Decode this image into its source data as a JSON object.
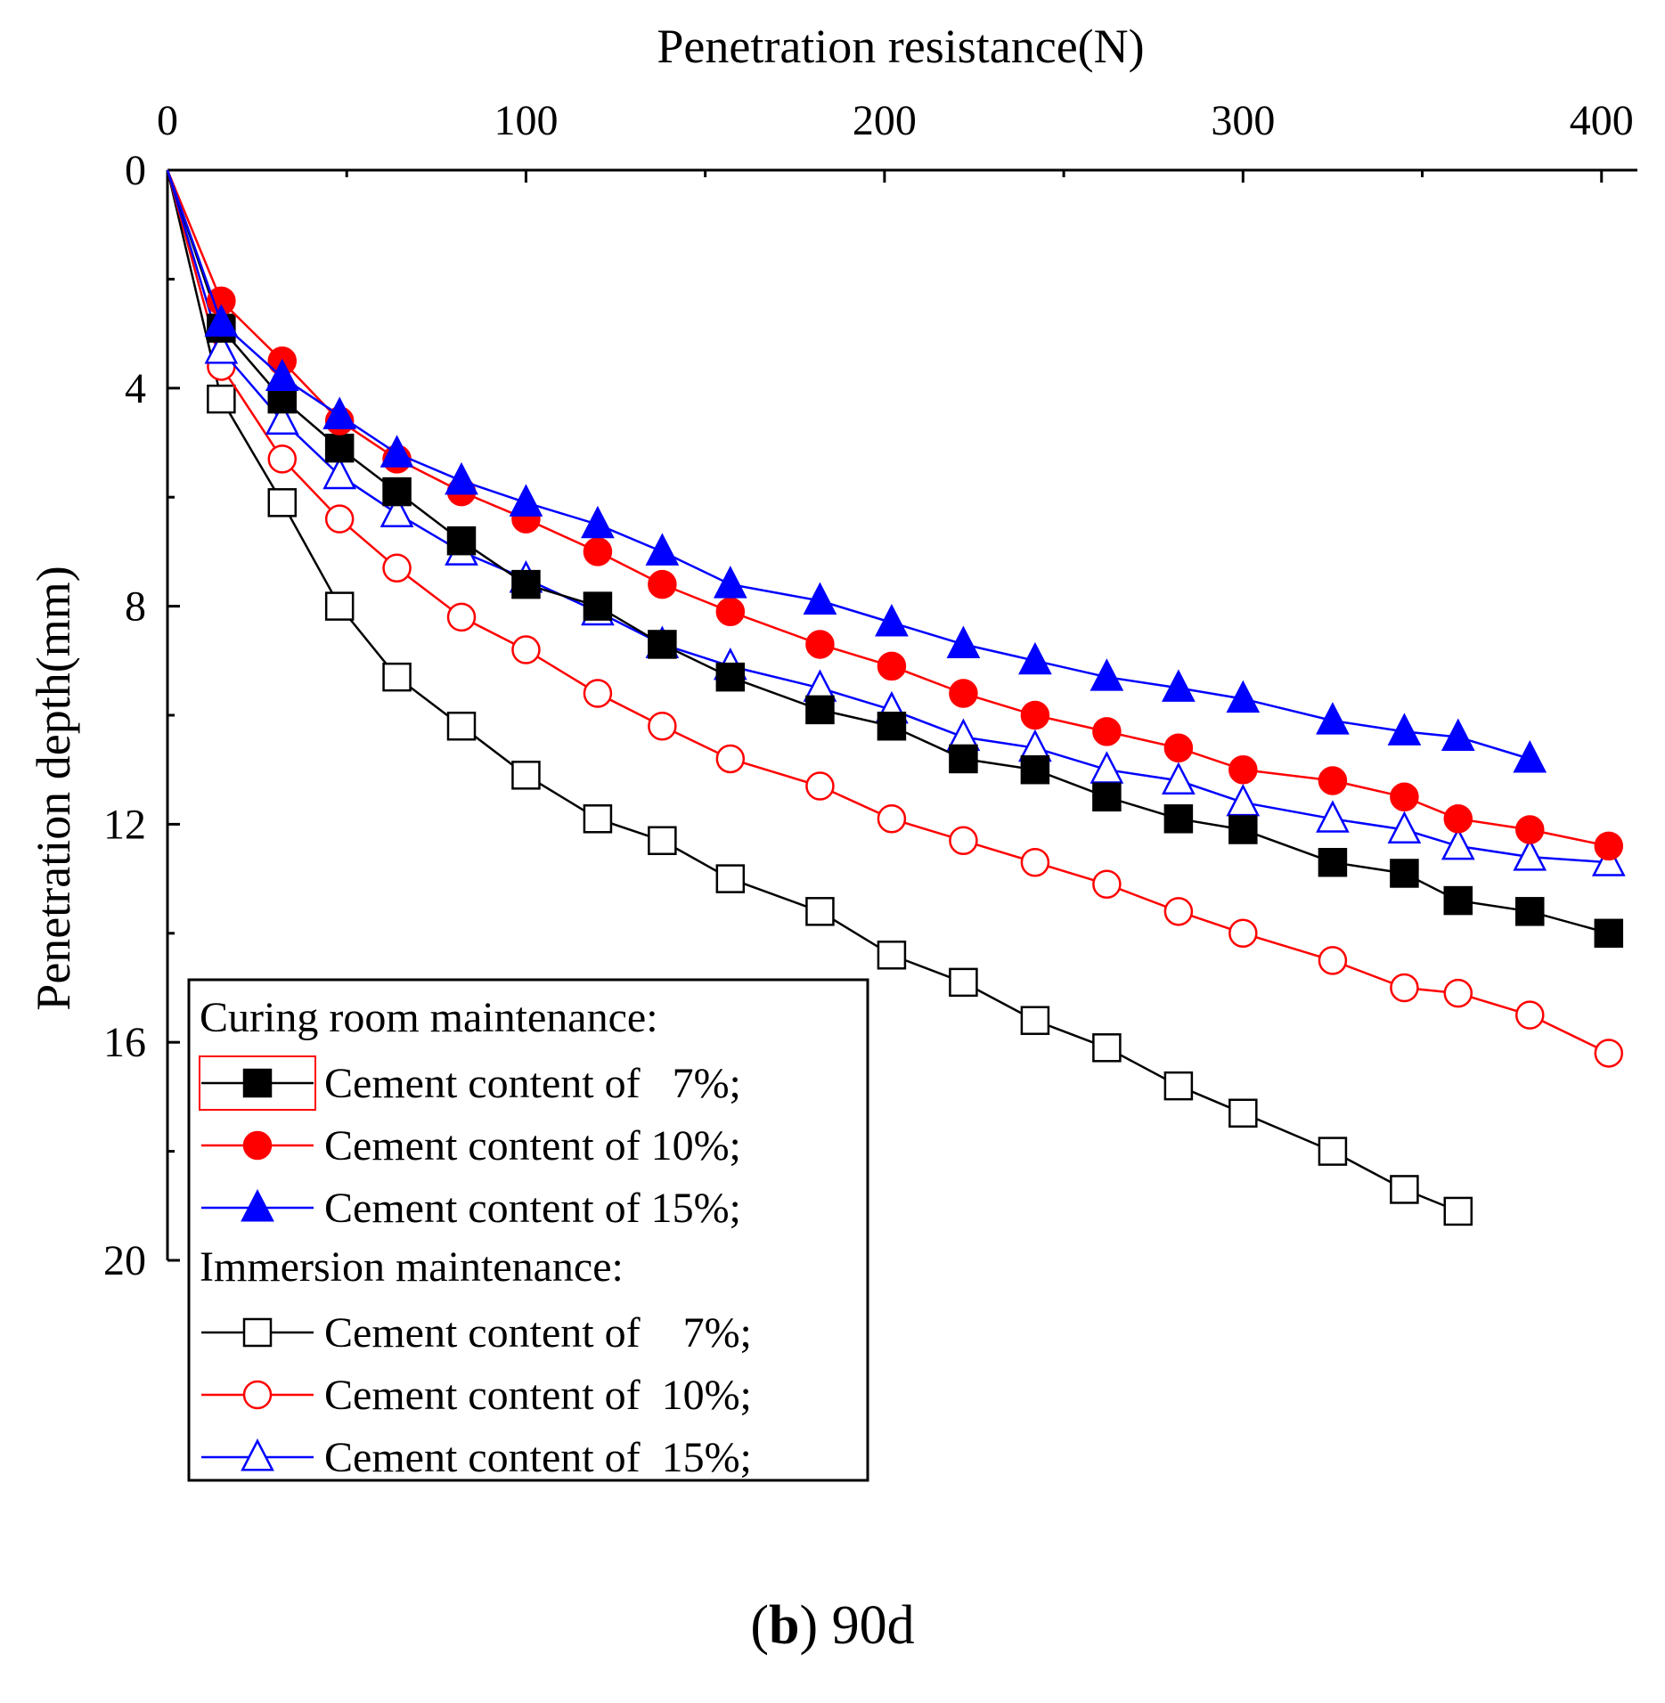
{
  "chart_data": {
    "type": "line",
    "title": "",
    "xlabel": "Penetration resistance(N)",
    "ylabel": "Penetration depth(mm)",
    "xlim": [
      0,
      410
    ],
    "ylim": [
      0,
      20
    ],
    "x_ticks": [
      "0",
      "100",
      "200",
      "300",
      "400"
    ],
    "y_ticks": [
      "0",
      "4",
      "8",
      "12",
      "16",
      "20"
    ],
    "x_axis_position": "top",
    "y_axis_inverted": true,
    "grid": false,
    "legend": {
      "position": "bottom-left",
      "groups": [
        {
          "heading": "Curing room maintenance:",
          "series_indices": [
            0,
            1,
            2
          ]
        },
        {
          "heading": "Immersion maintenance:",
          "series_indices": [
            3,
            4,
            5
          ]
        }
      ]
    },
    "series": [
      {
        "name": "Cement content of   7%;",
        "color": "#000000",
        "marker": "square",
        "filled": true,
        "x": [
          0,
          15,
          32,
          48,
          64,
          82,
          100,
          120,
          138,
          157,
          182,
          202,
          222,
          242,
          262,
          282,
          300,
          325,
          345,
          360,
          380,
          402
        ],
        "y": [
          0,
          2.9,
          4.2,
          5.1,
          5.9,
          6.8,
          7.6,
          8.0,
          8.7,
          9.3,
          9.9,
          10.2,
          10.8,
          11.0,
          11.5,
          11.9,
          12.1,
          12.7,
          12.9,
          13.4,
          13.6,
          14.0
        ]
      },
      {
        "name": "Cement content of 10%;",
        "color": "#ff0000",
        "marker": "circle",
        "filled": true,
        "x": [
          0,
          15,
          32,
          48,
          64,
          82,
          100,
          120,
          138,
          157,
          182,
          202,
          222,
          242,
          262,
          282,
          300,
          325,
          345,
          360,
          380,
          402
        ],
        "y": [
          0,
          2.4,
          3.5,
          4.6,
          5.3,
          5.9,
          6.4,
          7.0,
          7.6,
          8.1,
          8.7,
          9.1,
          9.6,
          10.0,
          10.3,
          10.6,
          11.0,
          11.2,
          11.5,
          11.9,
          12.1,
          12.4
        ]
      },
      {
        "name": "Cement content of 15%;",
        "color": "#0000ff",
        "marker": "triangle",
        "filled": true,
        "x": [
          0,
          15,
          32,
          48,
          64,
          82,
          100,
          120,
          138,
          157,
          182,
          202,
          222,
          242,
          262,
          282,
          300,
          325,
          345,
          360,
          380
        ],
        "y": [
          0,
          2.8,
          3.8,
          4.5,
          5.2,
          5.7,
          6.1,
          6.5,
          7.0,
          7.6,
          7.9,
          8.3,
          8.7,
          9.0,
          9.3,
          9.5,
          9.7,
          10.1,
          10.3,
          10.4,
          10.8
        ]
      },
      {
        "name": "Cement content of    7%;",
        "color": "#000000",
        "marker": "square",
        "filled": false,
        "x": [
          0,
          15,
          32,
          48,
          64,
          82,
          100,
          120,
          138,
          157,
          182,
          202,
          222,
          242,
          262,
          282,
          300,
          325,
          345,
          360
        ],
        "y": [
          0,
          4.2,
          6.1,
          8.0,
          9.3,
          10.2,
          11.1,
          11.9,
          12.3,
          13.0,
          13.6,
          14.4,
          14.9,
          15.6,
          16.1,
          16.8,
          17.3,
          18.0,
          18.7,
          19.1
        ]
      },
      {
        "name": "Cement content of  10%;",
        "color": "#ff0000",
        "marker": "circle",
        "filled": false,
        "x": [
          0,
          15,
          32,
          48,
          64,
          82,
          100,
          120,
          138,
          157,
          182,
          202,
          222,
          242,
          262,
          282,
          300,
          325,
          345,
          360,
          380,
          402
        ],
        "y": [
          0,
          3.6,
          5.3,
          6.4,
          7.3,
          8.2,
          8.8,
          9.6,
          10.2,
          10.8,
          11.3,
          11.9,
          12.3,
          12.7,
          13.1,
          13.6,
          14.0,
          14.5,
          15.0,
          15.1,
          15.5,
          16.2
        ]
      },
      {
        "name": "Cement content of  15%;",
        "color": "#0000ff",
        "marker": "triangle",
        "filled": false,
        "x": [
          0,
          15,
          32,
          48,
          64,
          82,
          100,
          120,
          138,
          157,
          182,
          202,
          222,
          242,
          262,
          282,
          300,
          325,
          345,
          360,
          380,
          402
        ],
        "y": [
          0,
          3.3,
          4.6,
          5.6,
          6.3,
          7.0,
          7.5,
          8.1,
          8.7,
          9.1,
          9.5,
          9.9,
          10.4,
          10.6,
          11.0,
          11.2,
          11.6,
          11.9,
          12.1,
          12.4,
          12.6,
          12.7
        ]
      }
    ]
  },
  "caption": {
    "label": "b",
    "text": "90d",
    "open_paren": "(",
    "close_paren": ")"
  }
}
